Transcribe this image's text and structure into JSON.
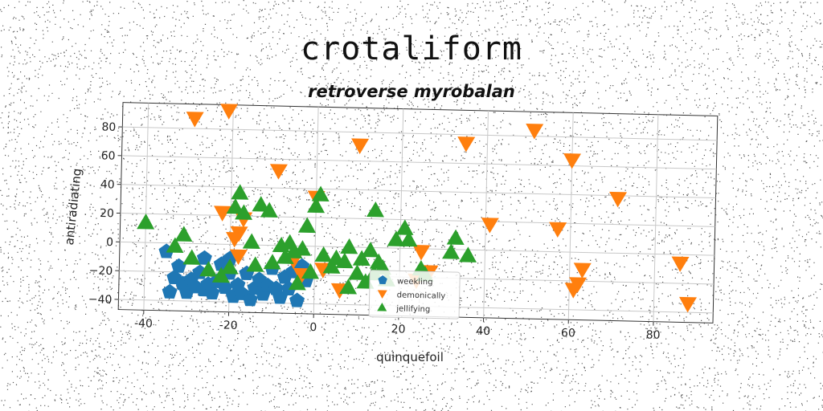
{
  "colors": {
    "weekling": "#1f77b4",
    "demonically": "#ff7f0e",
    "jellifying": "#2ca02c"
  },
  "chart_data": {
    "type": "scatter",
    "title": "crotaliform",
    "subtitle": "retroverse myrobalan",
    "xlabel": "quinquefoil",
    "ylabel": "antiradiating",
    "xlim": [
      -46,
      94
    ],
    "ylim": [
      -47,
      97
    ],
    "xticks": [
      -40,
      -20,
      0,
      20,
      40,
      60,
      80
    ],
    "yticks": [
      -40,
      -20,
      0,
      20,
      40,
      60,
      80
    ],
    "grid": true,
    "legend_position": "lower-center",
    "series": [
      {
        "name": "weekling",
        "marker": "pentagon",
        "color": "#1f77b4",
        "points": [
          [
            -35,
            -6
          ],
          [
            -33,
            -24
          ],
          [
            -31,
            -28
          ],
          [
            -30,
            -34
          ],
          [
            -29,
            -25
          ],
          [
            -28,
            -30
          ],
          [
            -27,
            -20
          ],
          [
            -26,
            -32
          ],
          [
            -25,
            -28
          ],
          [
            -24,
            -34
          ],
          [
            -23,
            -26
          ],
          [
            -22,
            -14
          ],
          [
            -21,
            -30
          ],
          [
            -20,
            -20
          ],
          [
            -19,
            -36
          ],
          [
            -18,
            -28
          ],
          [
            -17,
            -34
          ],
          [
            -16,
            -20
          ],
          [
            -15,
            -38
          ],
          [
            -14,
            -30
          ],
          [
            -13,
            -24
          ],
          [
            -12,
            -34
          ],
          [
            -11,
            -28
          ],
          [
            -10,
            -16
          ],
          [
            -9,
            -30
          ],
          [
            -8,
            -36
          ],
          [
            -7,
            -22
          ],
          [
            -6,
            -30
          ],
          [
            -5,
            -18
          ],
          [
            -4,
            -38
          ],
          [
            -3,
            -14
          ],
          [
            -2,
            -24
          ],
          [
            -32,
            -16
          ],
          [
            -26,
            -10
          ],
          [
            -20,
            -10
          ],
          [
            -34,
            -34
          ]
        ]
      },
      {
        "name": "demonically",
        "marker": "triangle_down",
        "color": "#ff7f0e",
        "points": [
          [
            -29,
            87
          ],
          [
            -21,
            93
          ],
          [
            -9,
            52
          ],
          [
            10,
            71
          ],
          [
            0,
            34
          ],
          [
            -17,
            18
          ],
          [
            -18,
            8
          ],
          [
            -19,
            4
          ],
          [
            -22,
            22
          ],
          [
            -18,
            -8
          ],
          [
            -5,
            -10
          ],
          [
            2,
            -16
          ],
          [
            6,
            -30
          ],
          [
            25,
            -2
          ],
          [
            27,
            -16
          ],
          [
            35,
            74
          ],
          [
            41,
            18
          ],
          [
            51,
            84
          ],
          [
            57,
            16
          ],
          [
            60,
            64
          ],
          [
            61,
            -26
          ],
          [
            62,
            -22
          ],
          [
            63,
            -12
          ],
          [
            71,
            38
          ],
          [
            86,
            -6
          ],
          [
            88,
            -34
          ],
          [
            24,
            -22
          ],
          [
            -3,
            -20
          ]
        ]
      },
      {
        "name": "jellifying",
        "marker": "triangle_up",
        "color": "#2ca02c",
        "points": [
          [
            -40,
            14
          ],
          [
            -33,
            -2
          ],
          [
            -31,
            6
          ],
          [
            -29,
            -10
          ],
          [
            -25,
            -18
          ],
          [
            -20,
            -16
          ],
          [
            -19,
            26
          ],
          [
            -18,
            36
          ],
          [
            -17,
            22
          ],
          [
            -14,
            -14
          ],
          [
            -13,
            28
          ],
          [
            -11,
            24
          ],
          [
            -10,
            -12
          ],
          [
            -8,
            0
          ],
          [
            -7,
            -8
          ],
          [
            -6,
            2
          ],
          [
            -5,
            -4
          ],
          [
            -3,
            -2
          ],
          [
            -2,
            14
          ],
          [
            -1,
            -18
          ],
          [
            0,
            28
          ],
          [
            1,
            36
          ],
          [
            2,
            -6
          ],
          [
            4,
            -14
          ],
          [
            5,
            -8
          ],
          [
            7,
            -10
          ],
          [
            8,
            0
          ],
          [
            10,
            -18
          ],
          [
            11,
            -8
          ],
          [
            12,
            -24
          ],
          [
            13,
            -2
          ],
          [
            14,
            26
          ],
          [
            15,
            -10
          ],
          [
            17,
            -22
          ],
          [
            19,
            6
          ],
          [
            21,
            14
          ],
          [
            22,
            6
          ],
          [
            25,
            -14
          ],
          [
            26,
            -18
          ],
          [
            32,
            -2
          ],
          [
            33,
            8
          ],
          [
            36,
            -4
          ],
          [
            -22,
            -22
          ],
          [
            -4,
            -26
          ],
          [
            8,
            -28
          ],
          [
            16,
            -14
          ],
          [
            14,
            -18
          ],
          [
            -15,
            2
          ]
        ]
      }
    ]
  }
}
